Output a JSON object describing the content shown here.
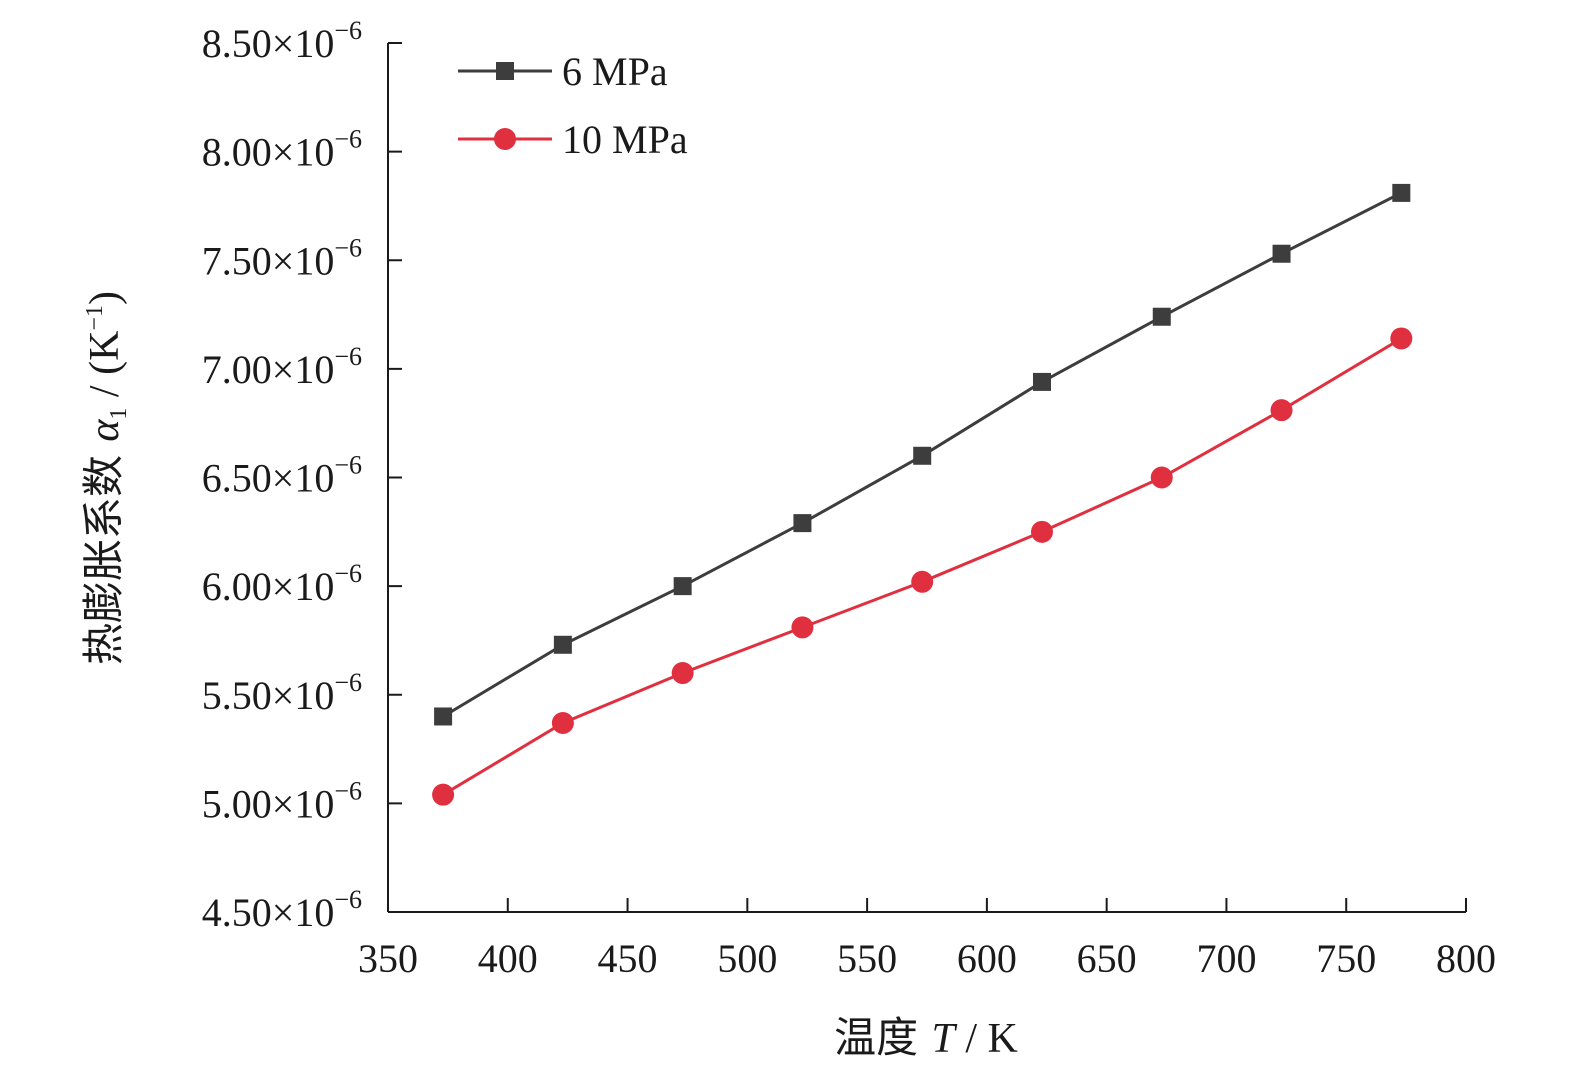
{
  "chart_data": {
    "type": "line",
    "xlabel": {
      "prefix": "温度 ",
      "var": "T",
      "suffix": " / K"
    },
    "ylabel": {
      "prefix": "热膨胀系数 ",
      "var": "α",
      "sub": "1",
      "suffix": " / (K",
      "sup": "−1",
      "close": ")"
    },
    "xlim": [
      350,
      800
    ],
    "ylim": [
      4.5e-06,
      8.5e-06
    ],
    "x_ticks": [
      350,
      400,
      450,
      500,
      550,
      600,
      650,
      700,
      750,
      800
    ],
    "x_tick_labels": [
      "350",
      "400",
      "450",
      "500",
      "550",
      "600",
      "650",
      "700",
      "750",
      "800"
    ],
    "y_ticks": [
      4.5e-06,
      5e-06,
      5.5e-06,
      6e-06,
      6.5e-06,
      7e-06,
      7.5e-06,
      8e-06,
      8.5e-06
    ],
    "y_tick_labels": [
      {
        "mant": "4.50×10",
        "exp": "−6"
      },
      {
        "mant": "5.00×10",
        "exp": "−6"
      },
      {
        "mant": "5.50×10",
        "exp": "−6"
      },
      {
        "mant": "6.00×10",
        "exp": "−6"
      },
      {
        "mant": "6.50×10",
        "exp": "−6"
      },
      {
        "mant": "7.00×10",
        "exp": "−6"
      },
      {
        "mant": "7.50×10",
        "exp": "−6"
      },
      {
        "mant": "8.00×10",
        "exp": "−6"
      },
      {
        "mant": "8.50×10",
        "exp": "−6"
      }
    ],
    "x": [
      373,
      423,
      473,
      523,
      573,
      623,
      673,
      723,
      773
    ],
    "series": [
      {
        "name": "6 MPa",
        "color": "#3d3d3d",
        "marker": "square",
        "values": [
          5.4e-06,
          5.73e-06,
          6e-06,
          6.29e-06,
          6.6e-06,
          6.94e-06,
          7.24e-06,
          7.53e-06,
          7.81e-06
        ]
      },
      {
        "name": "10 MPa",
        "color": "#e0303f",
        "marker": "circle",
        "values": [
          5.04e-06,
          5.37e-06,
          5.6e-06,
          5.81e-06,
          6.02e-06,
          6.25e-06,
          6.5e-06,
          6.81e-06,
          7.14e-06
        ]
      }
    ],
    "legend_position": "top-left",
    "grid": false
  }
}
